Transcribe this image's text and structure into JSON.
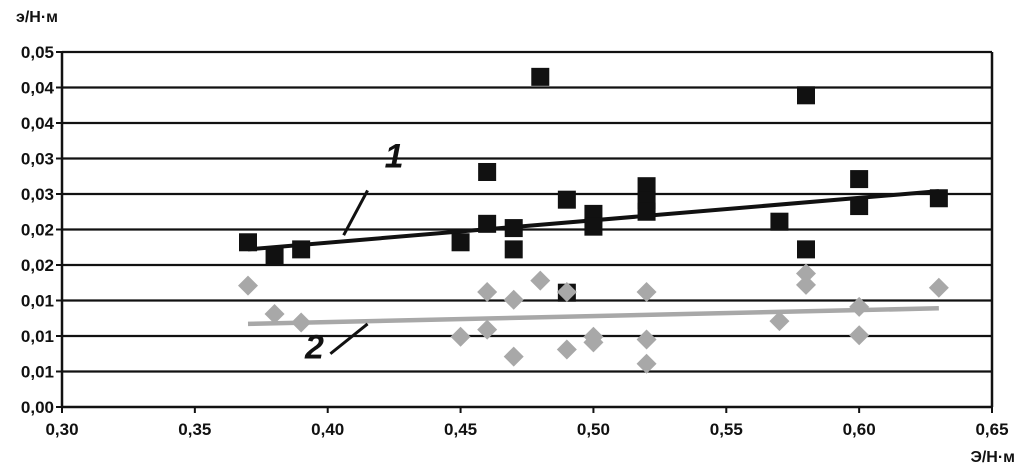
{
  "chart_data": {
    "type": "scatter",
    "ylabel": "э/Н·м",
    "xlabel": "Э/Н·м",
    "xlim": [
      0.3,
      0.65
    ],
    "ylim": [
      0,
      0.05
    ],
    "grid": true,
    "x_ticks": [
      0.3,
      0.35,
      0.4,
      0.45,
      0.5,
      0.55,
      0.6,
      0.65
    ],
    "x_tick_labels": [
      "0,30",
      "0,35",
      "0,40",
      "0,45",
      "0,50",
      "0,55",
      "0,60",
      "0,65"
    ],
    "y_ticks": [
      0,
      0.005,
      0.01,
      0.015,
      0.02,
      0.025,
      0.03,
      0.035,
      0.04,
      0.045,
      0.05
    ],
    "y_tick_labels": [
      "0,00",
      "0,01",
      "0,01",
      "0,01",
      "0,02",
      "0,02",
      "0,03",
      "0,03",
      "0,04",
      "0,04",
      "0,05"
    ],
    "series": [
      {
        "marker": "square",
        "color": "#111111",
        "points": [
          [
            0.37,
            0.0232
          ],
          [
            0.38,
            0.0212
          ],
          [
            0.39,
            0.0222
          ],
          [
            0.45,
            0.0232
          ],
          [
            0.46,
            0.0258
          ],
          [
            0.46,
            0.0331
          ],
          [
            0.47,
            0.0252
          ],
          [
            0.47,
            0.0222
          ],
          [
            0.48,
            0.0465
          ],
          [
            0.49,
            0.0292
          ],
          [
            0.49,
            0.0161
          ],
          [
            0.5,
            0.0272
          ],
          [
            0.5,
            0.0254
          ],
          [
            0.52,
            0.0311
          ],
          [
            0.52,
            0.0291
          ],
          [
            0.52,
            0.0275
          ],
          [
            0.57,
            0.0261
          ],
          [
            0.58,
            0.0439
          ],
          [
            0.58,
            0.0222
          ],
          [
            0.6,
            0.0321
          ],
          [
            0.6,
            0.0283
          ],
          [
            0.63,
            0.0294
          ]
        ],
        "trend": [
          [
            0.37,
            0.0222
          ],
          [
            0.63,
            0.0304
          ]
        ]
      },
      {
        "marker": "diamond",
        "color": "#a8a8a8",
        "points": [
          [
            0.37,
            0.0171
          ],
          [
            0.38,
            0.0131
          ],
          [
            0.39,
            0.0119
          ],
          [
            0.45,
            0.0099
          ],
          [
            0.46,
            0.0162
          ],
          [
            0.46,
            0.0109
          ],
          [
            0.47,
            0.0151
          ],
          [
            0.47,
            0.0071
          ],
          [
            0.48,
            0.0178
          ],
          [
            0.49,
            0.0162
          ],
          [
            0.49,
            0.0081
          ],
          [
            0.5,
            0.0099
          ],
          [
            0.5,
            0.0091
          ],
          [
            0.52,
            0.0162
          ],
          [
            0.52,
            0.0095
          ],
          [
            0.52,
            0.0061
          ],
          [
            0.57,
            0.0121
          ],
          [
            0.58,
            0.0188
          ],
          [
            0.58,
            0.0172
          ],
          [
            0.6,
            0.0141
          ],
          [
            0.6,
            0.0101
          ],
          [
            0.63,
            0.0168
          ]
        ],
        "trend": [
          [
            0.37,
            0.0117
          ],
          [
            0.63,
            0.0139
          ]
        ]
      }
    ],
    "annotations": [
      {
        "text": "1",
        "at": [
          0.425,
          0.0337
        ],
        "arrow_from": [
          0.415,
          0.0305
        ],
        "arrow_to": [
          0.406,
          0.0242
        ]
      },
      {
        "text": "2",
        "at": [
          0.395,
          0.0068
        ],
        "arrow_from": [
          0.401,
          0.0075
        ],
        "arrow_to": [
          0.415,
          0.0117
        ]
      }
    ]
  }
}
